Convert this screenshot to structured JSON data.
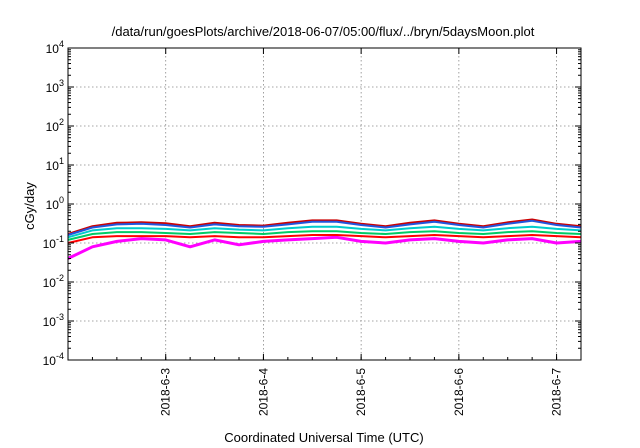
{
  "chart_data": {
    "type": "line",
    "title": "/data/run/goesPlots/archive/2018-06-07/05:00/flux/../bryn/5daysMoon.plot",
    "xlabel": "Coordinated Universal Time (UTC)",
    "ylabel": "cGy/day",
    "yscale": "log",
    "ylim": [
      0.0001,
      10000
    ],
    "y_ticks": [
      {
        "base": "10",
        "exp": "-4",
        "value": 0.0001
      },
      {
        "base": "10",
        "exp": "-3",
        "value": 0.001
      },
      {
        "base": "10",
        "exp": "-2",
        "value": 0.01
      },
      {
        "base": "10",
        "exp": "-1",
        "value": 0.1
      },
      {
        "base": "10",
        "exp": "0",
        "value": 1
      },
      {
        "base": "10",
        "exp": "1",
        "value": 10
      },
      {
        "base": "10",
        "exp": "2",
        "value": 100
      },
      {
        "base": "10",
        "exp": "3",
        "value": 1000
      },
      {
        "base": "10",
        "exp": "4",
        "value": 10000
      }
    ],
    "xlim": [
      "2018-06-02",
      "2018-06-07 06:00"
    ],
    "x_ticks": [
      "2018-6-3",
      "2018-6-4",
      "2018-6-5",
      "2018-6-6",
      "2018-6-7"
    ],
    "grid": true,
    "series": [
      {
        "color": "#ff00ff",
        "x": [
          "2018-06-02 00:00",
          "2018-06-02 06:00",
          "2018-06-02 12:00",
          "2018-06-02 18:00",
          "2018-06-03 00:00",
          "2018-06-03 06:00",
          "2018-06-03 12:00",
          "2018-06-03 18:00",
          "2018-06-04 00:00",
          "2018-06-04 06:00",
          "2018-06-04 12:00",
          "2018-06-04 18:00",
          "2018-06-05 00:00",
          "2018-06-05 06:00",
          "2018-06-05 12:00",
          "2018-06-05 18:00",
          "2018-06-06 00:00",
          "2018-06-06 06:00",
          "2018-06-06 12:00",
          "2018-06-06 18:00",
          "2018-06-07 00:00",
          "2018-06-07 06:00"
        ],
        "values": [
          0.04,
          0.08,
          0.11,
          0.13,
          0.12,
          0.08,
          0.12,
          0.09,
          0.11,
          0.12,
          0.13,
          0.14,
          0.11,
          0.1,
          0.12,
          0.13,
          0.11,
          0.1,
          0.12,
          0.13,
          0.1,
          0.11
        ]
      },
      {
        "color": "#ff0000",
        "x": [
          "2018-06-02 00:00",
          "2018-06-02 06:00",
          "2018-06-02 12:00",
          "2018-06-02 18:00",
          "2018-06-03 00:00",
          "2018-06-03 06:00",
          "2018-06-03 12:00",
          "2018-06-03 18:00",
          "2018-06-04 00:00",
          "2018-06-04 06:00",
          "2018-06-04 12:00",
          "2018-06-04 18:00",
          "2018-06-05 00:00",
          "2018-06-05 06:00",
          "2018-06-05 12:00",
          "2018-06-05 18:00",
          "2018-06-06 00:00",
          "2018-06-06 06:00",
          "2018-06-06 12:00",
          "2018-06-06 18:00",
          "2018-06-07 00:00",
          "2018-06-07 06:00"
        ],
        "values": [
          0.1,
          0.14,
          0.15,
          0.15,
          0.15,
          0.14,
          0.15,
          0.14,
          0.14,
          0.15,
          0.16,
          0.16,
          0.15,
          0.14,
          0.15,
          0.16,
          0.15,
          0.14,
          0.15,
          0.16,
          0.15,
          0.14
        ]
      },
      {
        "color": "#00cc66",
        "x": [
          "2018-06-02 00:00",
          "2018-06-02 06:00",
          "2018-06-02 12:00",
          "2018-06-02 18:00",
          "2018-06-03 00:00",
          "2018-06-03 06:00",
          "2018-06-03 12:00",
          "2018-06-03 18:00",
          "2018-06-04 00:00",
          "2018-06-04 06:00",
          "2018-06-04 12:00",
          "2018-06-04 18:00",
          "2018-06-05 00:00",
          "2018-06-05 06:00",
          "2018-06-05 12:00",
          "2018-06-05 18:00",
          "2018-06-06 00:00",
          "2018-06-06 06:00",
          "2018-06-06 12:00",
          "2018-06-06 18:00",
          "2018-06-07 00:00",
          "2018-06-07 06:00"
        ],
        "values": [
          0.12,
          0.17,
          0.19,
          0.19,
          0.18,
          0.17,
          0.19,
          0.18,
          0.17,
          0.19,
          0.2,
          0.2,
          0.18,
          0.17,
          0.19,
          0.2,
          0.18,
          0.17,
          0.19,
          0.2,
          0.18,
          0.17
        ]
      },
      {
        "color": "#00cccc",
        "x": [
          "2018-06-02 00:00",
          "2018-06-02 06:00",
          "2018-06-02 12:00",
          "2018-06-02 18:00",
          "2018-06-03 00:00",
          "2018-06-03 06:00",
          "2018-06-03 12:00",
          "2018-06-03 18:00",
          "2018-06-04 00:00",
          "2018-06-04 06:00",
          "2018-06-04 12:00",
          "2018-06-04 18:00",
          "2018-06-05 00:00",
          "2018-06-05 06:00",
          "2018-06-05 12:00",
          "2018-06-05 18:00",
          "2018-06-06 00:00",
          "2018-06-06 06:00",
          "2018-06-06 12:00",
          "2018-06-06 18:00",
          "2018-06-07 00:00",
          "2018-06-07 06:00"
        ],
        "values": [
          0.14,
          0.21,
          0.24,
          0.24,
          0.23,
          0.21,
          0.24,
          0.22,
          0.21,
          0.24,
          0.26,
          0.26,
          0.23,
          0.21,
          0.24,
          0.26,
          0.23,
          0.21,
          0.24,
          0.26,
          0.23,
          0.21
        ]
      },
      {
        "color": "#cc0000",
        "x": [
          "2018-06-02 00:00",
          "2018-06-02 06:00",
          "2018-06-02 12:00",
          "2018-06-02 18:00",
          "2018-06-03 00:00",
          "2018-06-03 06:00",
          "2018-06-03 12:00",
          "2018-06-03 18:00",
          "2018-06-04 00:00",
          "2018-06-04 06:00",
          "2018-06-04 12:00",
          "2018-06-04 18:00",
          "2018-06-05 00:00",
          "2018-06-05 06:00",
          "2018-06-05 12:00",
          "2018-06-05 18:00",
          "2018-06-06 00:00",
          "2018-06-06 06:00",
          "2018-06-06 12:00",
          "2018-06-06 18:00",
          "2018-06-07 00:00",
          "2018-06-07 06:00"
        ],
        "values": [
          0.17,
          0.27,
          0.33,
          0.34,
          0.32,
          0.27,
          0.33,
          0.29,
          0.28,
          0.33,
          0.38,
          0.38,
          0.31,
          0.27,
          0.33,
          0.38,
          0.31,
          0.27,
          0.34,
          0.4,
          0.31,
          0.27
        ]
      },
      {
        "color": "#2255dd",
        "x": [
          "2018-06-02 00:00",
          "2018-06-02 06:00",
          "2018-06-02 12:00",
          "2018-06-02 18:00",
          "2018-06-03 00:00",
          "2018-06-03 06:00",
          "2018-06-03 12:00",
          "2018-06-03 18:00",
          "2018-06-04 00:00",
          "2018-06-04 06:00",
          "2018-06-04 12:00",
          "2018-06-04 18:00",
          "2018-06-05 00:00",
          "2018-06-05 06:00",
          "2018-06-05 12:00",
          "2018-06-05 18:00",
          "2018-06-06 00:00",
          "2018-06-06 06:00",
          "2018-06-06 12:00",
          "2018-06-06 18:00",
          "2018-06-07 00:00",
          "2018-06-07 06:00"
        ],
        "values": [
          0.16,
          0.25,
          0.3,
          0.31,
          0.29,
          0.25,
          0.3,
          0.27,
          0.26,
          0.3,
          0.35,
          0.35,
          0.29,
          0.25,
          0.3,
          0.35,
          0.29,
          0.25,
          0.31,
          0.37,
          0.29,
          0.25
        ]
      }
    ]
  }
}
